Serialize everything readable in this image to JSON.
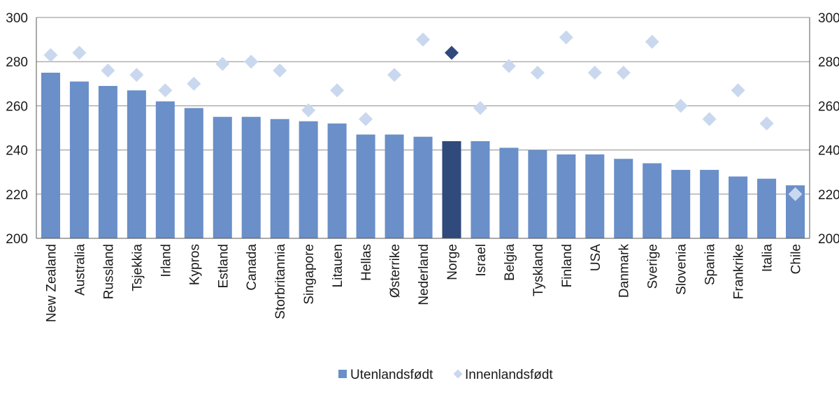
{
  "chart_data": {
    "type": "bar",
    "title": "",
    "xlabel": "",
    "ylabel": "",
    "ylim": [
      200,
      300
    ],
    "yticks": [
      200,
      220,
      240,
      260,
      280,
      300
    ],
    "grid": true,
    "legend_position": "bottom",
    "categories": [
      "New Zealand",
      "Australia",
      "Russland",
      "Tsjekkia",
      "Irland",
      "Kypros",
      "Estland",
      "Canada",
      "Storbritannia",
      "Singapore",
      "Litauen",
      "Hellas",
      "Østerrike",
      "Nederland",
      "Norge",
      "Israel",
      "Belgia",
      "Tyskland",
      "Finland",
      "USA",
      "Danmark",
      "Sverige",
      "Slovenia",
      "Spania",
      "Frankrike",
      "Italia",
      "Chile"
    ],
    "highlight_category": "Norge",
    "series": [
      {
        "name": "Utenlandsfødt",
        "type": "bar",
        "color": "#6a8fc9",
        "highlight_color": "#2f4a7b",
        "values": [
          275,
          271,
          269,
          267,
          262,
          259,
          255,
          255,
          254,
          253,
          252,
          247,
          247,
          246,
          244,
          244,
          241,
          240,
          238,
          238,
          236,
          234,
          231,
          231,
          228,
          227,
          224
        ]
      },
      {
        "name": "Innenlandsfødt",
        "type": "scatter",
        "marker": "diamond",
        "color": "#c9d8ee",
        "highlight_color": "#2f4a7b",
        "values": [
          283,
          284,
          276,
          274,
          267,
          270,
          279,
          280,
          276,
          258,
          267,
          254,
          274,
          290,
          284,
          259,
          278,
          275,
          291,
          275,
          275,
          289,
          260,
          254,
          267,
          252,
          220
        ]
      }
    ]
  }
}
